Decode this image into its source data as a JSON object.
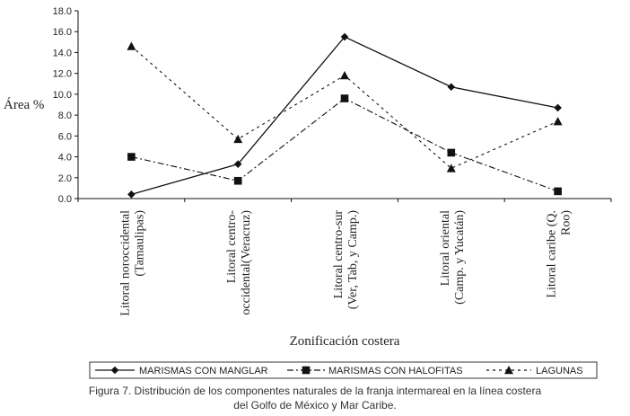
{
  "chart_data": {
    "type": "line",
    "categories": [
      [
        "Litoral noroccidental",
        "(Tamaulipas)"
      ],
      [
        "Litoral centro-",
        "occidental(Veracruz)"
      ],
      [
        "Litoral centro-sur",
        "(Ver, Tab, y Camp.)"
      ],
      [
        "Litoral oriental",
        "(Camp. y Yucatán)"
      ],
      [
        "Litoral caribe (Q.",
        "Roo)"
      ]
    ],
    "series": [
      {
        "name": "MARISMAS CON MANGLAR",
        "values": [
          0.4,
          3.3,
          15.5,
          10.7,
          8.7
        ],
        "marker": "diamond",
        "dash": "solid",
        "color": "#111111"
      },
      {
        "name": "MARISMAS CON HALOFITAS",
        "values": [
          4.0,
          1.7,
          9.6,
          4.4,
          0.7
        ],
        "marker": "square",
        "dash": "dashdot",
        "color": "#111111"
      },
      {
        "name": "LAGUNAS",
        "values": [
          14.6,
          5.7,
          11.8,
          2.9,
          7.4
        ],
        "marker": "triangle",
        "dash": "dotted",
        "color": "#111111"
      }
    ],
    "ylabel": "Área %",
    "xlabel": "Zonificación costera",
    "ylim": [
      0,
      18
    ],
    "yticks": [
      "0.0",
      "2.0",
      "4.0",
      "6.0",
      "8.0",
      "10.0",
      "12.0",
      "14.0",
      "16.0",
      "18.0"
    ],
    "grid": false,
    "legend_position": "bottom"
  },
  "caption": {
    "line1": "Figura 7. Distribución de los componentes naturales de la franja intermareal en la línea costera",
    "line2": "del Golfo de México y Mar Caribe."
  }
}
